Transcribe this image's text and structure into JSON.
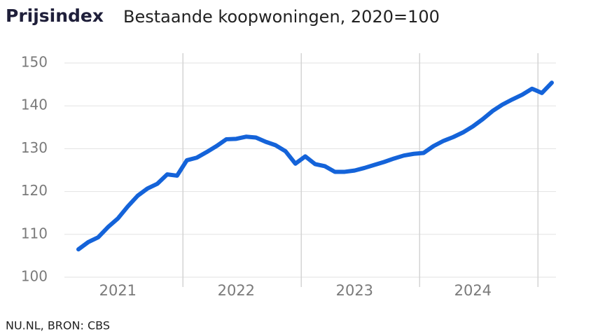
{
  "chart_data": {
    "type": "line",
    "title": "Prijsindex",
    "subtitle": "Bestaande koopwoningen, 2020=100",
    "source": "NU.NL, BRON: CBS",
    "categories": [
      null,
      null,
      null,
      null,
      "2021",
      null,
      null,
      null,
      null,
      null,
      null,
      null,
      null,
      null,
      null,
      null,
      "2022",
      null,
      null,
      null,
      null,
      null,
      null,
      null,
      null,
      null,
      null,
      null,
      "2023",
      null,
      null,
      null,
      null,
      null,
      null,
      null,
      null,
      null,
      null,
      null,
      "2024",
      null,
      null,
      null,
      null,
      null,
      null,
      null,
      null
    ],
    "series": [
      {
        "color": "#1463d9",
        "values": [
          106.5,
          108.2,
          109.3,
          111.7,
          113.7,
          116.5,
          119,
          120.7,
          121.8,
          124,
          123.7,
          127.3,
          127.9,
          129.2,
          130.6,
          132.2,
          132.3,
          132.8,
          132.6,
          131.6,
          130.8,
          129.4,
          126.5,
          128.2,
          126.4,
          125.9,
          124.6,
          124.6,
          124.9,
          125.5,
          126.2,
          126.9,
          127.7,
          128.4,
          128.8,
          129,
          130.6,
          131.8,
          132.7,
          133.8,
          135.2,
          136.9,
          138.8,
          140.3,
          141.5,
          142.6,
          144,
          143,
          145.4
        ]
      }
    ],
    "ylim": [
      100,
      150
    ],
    "yticks": [
      100,
      110,
      120,
      130,
      140,
      150
    ],
    "grid": true
  }
}
